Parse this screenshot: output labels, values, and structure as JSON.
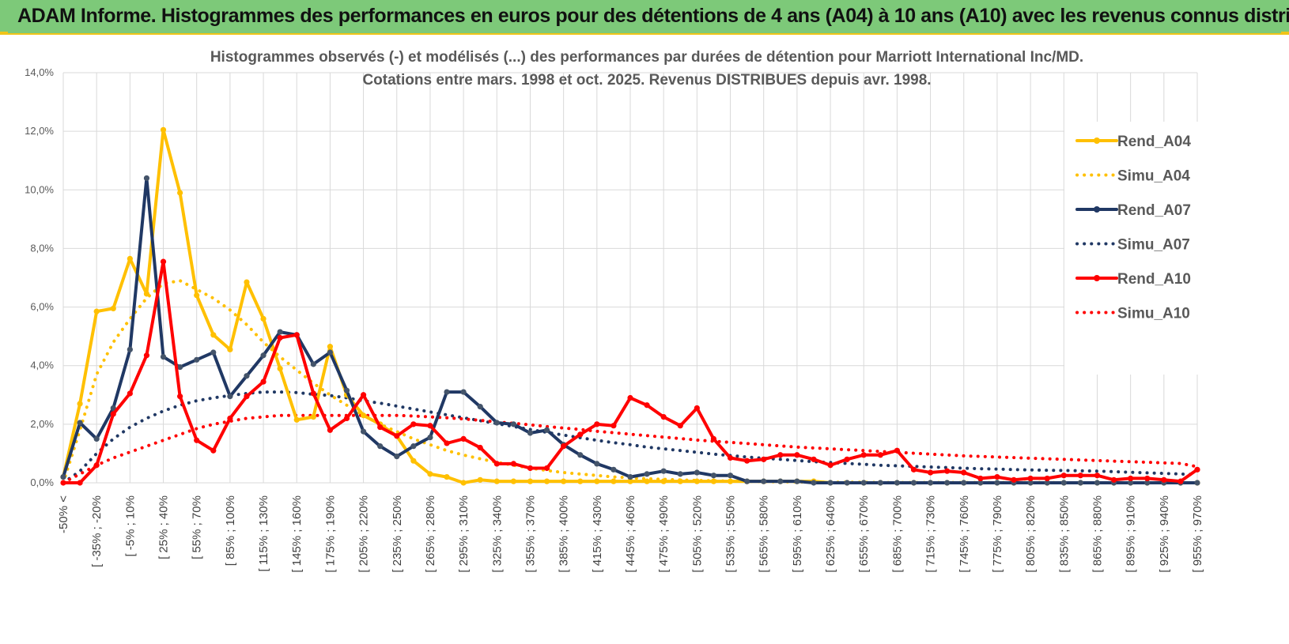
{
  "banner": {
    "title": "ADAM Informe. Histogrammes des performances en euros pour des détentions de 4 ans (A04) à 10 ans (A10) avec les revenus connus distribués"
  },
  "chart_data": {
    "type": "line",
    "title": [
      "Histogrammes observés (-) et modélisés (...) des performances par durées de détention pour Marriott International Inc/MD.",
      "Cotations entre mars. 1998 et oct. 2025. Revenus DISTRIBUES depuis avr. 1998."
    ],
    "xlabel": "",
    "ylabel": "",
    "ylim": [
      0,
      14
    ],
    "y_ticks": [
      "0,0%",
      "2,0%",
      "4,0%",
      "6,0%",
      "8,0%",
      "10,0%",
      "12,0%",
      "14,0%"
    ],
    "grid": true,
    "legend_position": "right",
    "x_tick_labels": [
      "-50% <",
      "[ -35% ; -20%",
      "[ -5% ; 10%",
      "[ 25% ; 40%",
      "[ 55% ; 70%",
      "[ 85% ; 100%",
      "[ 115% ; 130%",
      "[ 145% ; 160%",
      "[ 175% ; 190%",
      "[ 205% ; 220%",
      "[ 235% ; 250%",
      "[ 265% ; 280%",
      "[ 295% ; 310%",
      "[ 325% ; 340%",
      "[ 355% ; 370%",
      "[ 385% ; 400%",
      "[ 415% ; 430%",
      "[ 445% ; 460%",
      "[ 475% ; 490%",
      "[ 505% ; 520%",
      "[ 535% ; 550%",
      "[ 565% ; 580%",
      "[ 595% ; 610%",
      "[ 625% ; 640%",
      "[ 655% ; 670%",
      "[ 685% ; 700%",
      "[ 715% ; 730%",
      "[ 745% ; 760%",
      "[ 775% ; 790%",
      "[ 805% ; 820%",
      "[ 835% ; 850%",
      "[ 865% ; 880%",
      "[ 895% ; 910%",
      "[ 925% ; 940%",
      "[ 955% ; 970%"
    ],
    "n_points": 69,
    "series": [
      {
        "name": "Rend_A04",
        "color": "#ffc000",
        "style": "solid",
        "markers": true,
        "values": [
          0.2,
          2.7,
          5.85,
          5.95,
          7.65,
          6.45,
          12.05,
          9.9,
          6.4,
          5.05,
          4.55,
          6.85,
          5.6,
          3.9,
          2.15,
          2.25,
          4.65,
          3.0,
          2.3,
          2.0,
          1.6,
          0.75,
          0.3,
          0.2,
          0.0,
          0.1,
          0.05,
          0.05,
          0.05,
          0.05,
          0.05,
          0.05,
          0.05,
          0.05,
          0.05,
          0.05,
          0.05,
          0.05,
          0.05,
          0.05,
          0.05,
          0.05,
          0.05,
          0.05,
          0.05,
          0.05,
          0.0,
          0.0,
          0.0,
          0.0,
          0.0,
          0.0,
          0.0,
          0.0,
          0.0,
          0.0,
          0.0,
          0.0,
          0.0,
          0.0,
          0.0,
          0.0,
          0.0,
          0.0,
          0.0,
          0.0,
          0.0,
          0.0,
          0.0
        ]
      },
      {
        "name": "Simu_A04",
        "color": "#ffc000",
        "style": "dotted",
        "markers": false,
        "values": [
          0.0,
          1.8,
          3.7,
          4.8,
          5.6,
          6.3,
          6.8,
          6.9,
          6.6,
          6.3,
          5.9,
          5.4,
          4.8,
          4.3,
          3.85,
          3.4,
          3.0,
          2.65,
          2.3,
          2.0,
          1.75,
          1.5,
          1.3,
          1.1,
          0.95,
          0.82,
          0.7,
          0.6,
          0.5,
          0.42,
          0.35,
          0.3,
          0.25,
          0.2,
          0.17,
          0.14,
          0.12,
          0.1,
          0.08,
          0.07,
          0.06,
          0.05,
          0.04,
          0.03,
          0.03,
          0.02,
          0.02,
          0.02,
          0.02,
          0.01,
          0.01,
          0.01,
          0.01,
          0.01,
          0.01,
          0.01,
          0.01,
          0.01,
          0.01,
          0.01,
          0.0,
          0.0,
          0.0,
          0.0,
          0.0,
          0.0,
          0.0,
          0.0,
          0.0
        ]
      },
      {
        "name": "Rend_A07",
        "color": "#203864",
        "style": "solid",
        "markers": true,
        "values": [
          0.2,
          2.05,
          1.5,
          2.55,
          4.55,
          10.4,
          4.3,
          3.95,
          4.2,
          4.45,
          2.95,
          3.65,
          4.35,
          5.15,
          5.05,
          4.05,
          4.45,
          3.15,
          1.75,
          1.25,
          0.9,
          1.25,
          1.55,
          3.1,
          3.1,
          2.6,
          2.05,
          2.0,
          1.7,
          1.8,
          1.3,
          0.95,
          0.65,
          0.45,
          0.2,
          0.3,
          0.4,
          0.3,
          0.35,
          0.25,
          0.25,
          0.05,
          0.05,
          0.05,
          0.05,
          0.0,
          0.0,
          0.0,
          0.0,
          0.0,
          0.0,
          0.0,
          0.0,
          0.0,
          0.0,
          0.0,
          0.0,
          0.0,
          0.0,
          0.0,
          0.0,
          0.0,
          0.0,
          0.0,
          0.0,
          0.0,
          0.0,
          0.0,
          0.0
        ]
      },
      {
        "name": "Simu_A07",
        "color": "#203864",
        "style": "dotted",
        "markers": false,
        "values": [
          0.0,
          0.4,
          1.0,
          1.5,
          1.9,
          2.2,
          2.45,
          2.65,
          2.8,
          2.9,
          2.98,
          3.05,
          3.1,
          3.1,
          3.08,
          3.02,
          2.98,
          2.9,
          2.8,
          2.72,
          2.62,
          2.52,
          2.42,
          2.32,
          2.22,
          2.12,
          2.02,
          1.92,
          1.82,
          1.72,
          1.63,
          1.54,
          1.45,
          1.37,
          1.3,
          1.22,
          1.16,
          1.1,
          1.04,
          0.98,
          0.93,
          0.88,
          0.84,
          0.8,
          0.76,
          0.72,
          0.69,
          0.66,
          0.63,
          0.6,
          0.58,
          0.56,
          0.54,
          0.52,
          0.5,
          0.48,
          0.47,
          0.45,
          0.44,
          0.43,
          0.42,
          0.41,
          0.4,
          0.38,
          0.36,
          0.34,
          0.32,
          0.3,
          0.28
        ]
      },
      {
        "name": "Rend_A10",
        "color": "#ff0000",
        "style": "solid",
        "markers": true,
        "values": [
          0.0,
          0.0,
          0.6,
          2.35,
          3.05,
          4.35,
          7.55,
          2.95,
          1.45,
          1.1,
          2.2,
          2.95,
          3.45,
          4.95,
          5.05,
          3.05,
          1.8,
          2.2,
          3.0,
          1.9,
          1.6,
          2.0,
          1.95,
          1.35,
          1.5,
          1.2,
          0.65,
          0.65,
          0.5,
          0.5,
          1.25,
          1.65,
          2.0,
          1.95,
          2.9,
          2.65,
          2.25,
          1.95,
          2.55,
          1.5,
          0.85,
          0.75,
          0.8,
          0.95,
          0.95,
          0.8,
          0.6,
          0.8,
          0.95,
          0.95,
          1.1,
          0.45,
          0.35,
          0.4,
          0.35,
          0.15,
          0.2,
          0.1,
          0.15,
          0.15,
          0.25,
          0.25,
          0.25,
          0.1,
          0.15,
          0.15,
          0.1,
          0.05,
          0.45
        ]
      },
      {
        "name": "Simu_A10",
        "color": "#ff0000",
        "style": "dotted",
        "markers": false,
        "values": [
          0.0,
          0.3,
          0.6,
          0.85,
          1.05,
          1.25,
          1.45,
          1.65,
          1.85,
          2.0,
          2.1,
          2.2,
          2.25,
          2.3,
          2.3,
          2.3,
          2.3,
          2.3,
          2.3,
          2.3,
          2.3,
          2.28,
          2.25,
          2.22,
          2.18,
          2.13,
          2.08,
          2.03,
          1.98,
          1.92,
          1.87,
          1.82,
          1.76,
          1.71,
          1.66,
          1.61,
          1.56,
          1.51,
          1.46,
          1.42,
          1.38,
          1.34,
          1.3,
          1.26,
          1.22,
          1.19,
          1.16,
          1.13,
          1.1,
          1.07,
          1.04,
          1.01,
          0.98,
          0.95,
          0.92,
          0.9,
          0.88,
          0.86,
          0.84,
          0.82,
          0.8,
          0.78,
          0.76,
          0.74,
          0.72,
          0.7,
          0.68,
          0.66,
          0.55
        ]
      }
    ]
  }
}
